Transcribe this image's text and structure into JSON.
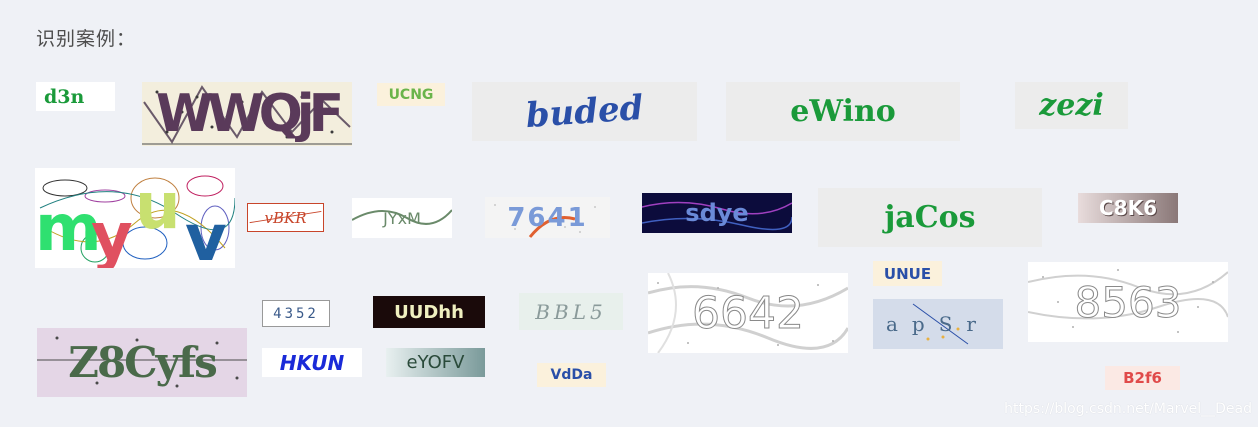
{
  "heading": "识别案例：",
  "captchas": [
    {
      "id": "c1",
      "text": "d3n",
      "color": "#1a9a3a",
      "bg": "#ffffff"
    },
    {
      "id": "c2",
      "text": "WWQjF",
      "color": "#5a3a5a",
      "bg": "#f3eedd"
    },
    {
      "id": "c3",
      "text": "UCNG",
      "color": "#6ab44a",
      "bg": "#fbf1dc"
    },
    {
      "id": "c4",
      "text": "buded",
      "color": "#2a4fa8",
      "bg": "#ececec"
    },
    {
      "id": "c5",
      "text": "eWino",
      "color": "#1a9a3a",
      "bg": "#ececec"
    },
    {
      "id": "c6",
      "text": "zezi",
      "color": "#1a9a3a",
      "bg": "#ececec"
    },
    {
      "id": "c7",
      "text": "myuv",
      "color": "#3aa0d8",
      "bg": "#ffffff"
    },
    {
      "id": "c8",
      "text": "vBKR",
      "color": "#c8452a",
      "bg": "#ffffff"
    },
    {
      "id": "c9",
      "text": "JYxM",
      "color": "#6a8a6a",
      "bg": "#ffffff"
    },
    {
      "id": "c10",
      "text": "7641",
      "color": "#7a9ad8",
      "bg": "#f4f4f4"
    },
    {
      "id": "c11",
      "text": "sdye",
      "color": "#6a8ad8",
      "bg": "#0c0c3c"
    },
    {
      "id": "c12",
      "text": "jaCos",
      "color": "#1a9a3a",
      "bg": "#ececec"
    },
    {
      "id": "c13",
      "text": "C8K6",
      "color": "#ffffff",
      "bg": "#8a7878"
    },
    {
      "id": "c14",
      "text": "4352",
      "color": "#3a5a8a",
      "bg": "#ffffff"
    },
    {
      "id": "c15",
      "text": "UUDhh",
      "color": "#f0f0c0",
      "bg": "#1a0a0a"
    },
    {
      "id": "c16",
      "text": "BBL5",
      "color": "#8a9a9a",
      "bg": "#e8f0ec"
    },
    {
      "id": "c17",
      "text": "6642",
      "color": "#8a8a8a",
      "bg": "#ffffff"
    },
    {
      "id": "c18",
      "text": "UNUE",
      "color": "#2a4fa8",
      "bg": "#fbf1dc"
    },
    {
      "id": "c19",
      "text": "Z8Cyfs",
      "color": "#4a6a4a",
      "bg": "#e4d6e6"
    },
    {
      "id": "c20",
      "text": "HKUN",
      "color": "#1a2ad8",
      "bg": "#ffffff"
    },
    {
      "id": "c21",
      "text": "eYOFV",
      "color": "#2a4a3a",
      "bg": "#c8d8d8"
    },
    {
      "id": "c22",
      "text": "VdDa",
      "color": "#2a4fa8",
      "bg": "#fbf1dc"
    },
    {
      "id": "c23",
      "text": "apSr",
      "color": "#4a6a8a",
      "bg": "#d4dcea"
    },
    {
      "id": "c24",
      "text": "8563",
      "color": "#8a8a8a",
      "bg": "#ffffff"
    },
    {
      "id": "c25",
      "text": "B2f6",
      "color": "#e04a4a",
      "bg": "#fbe9e4"
    }
  ],
  "watermark": "https://blog.csdn.net/Marvel__Dead"
}
